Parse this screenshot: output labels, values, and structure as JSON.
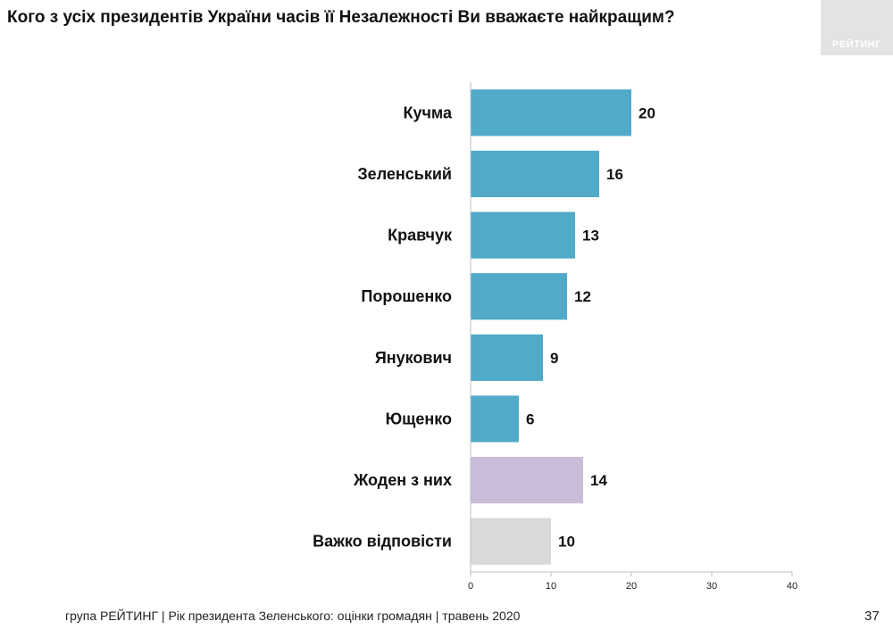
{
  "title": "Кого з усіх президентів України часів її Незалежності Ви вважаєте найкращим?",
  "logo": "РЕЙТИНГ",
  "chart_data": {
    "type": "bar",
    "orientation": "horizontal",
    "categories": [
      "Кучма",
      "Зеленський",
      "Кравчук",
      "Порошенко",
      "Янукович",
      "Ющенко",
      "Жоден з них",
      "Важко відповісти"
    ],
    "values": [
      20,
      16,
      13,
      12,
      9,
      6,
      14,
      10
    ],
    "colors": [
      "#51aac7",
      "#51aac7",
      "#51aac7",
      "#51aac7",
      "#51aac7",
      "#51aac7",
      "#cbbcd9",
      "#d9d9d9"
    ],
    "xlim": [
      0,
      40
    ],
    "xticks": [
      0,
      10,
      20,
      30,
      40
    ],
    "xlabel": "",
    "ylabel": ""
  },
  "footer": {
    "text": "група РЕЙТИНГ |  Рік президента Зеленського: оцінки громадян | травень 2020",
    "page": "37"
  }
}
